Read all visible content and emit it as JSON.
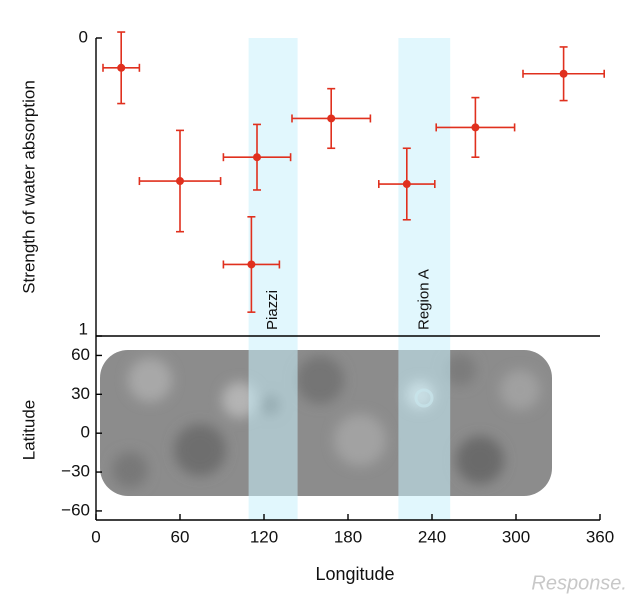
{
  "chart_data": [
    {
      "type": "scatter",
      "ylabel": "Strength of water absorption",
      "xlim": [
        0,
        360
      ],
      "ylim": [
        0,
        1
      ],
      "y_inverted": true,
      "yticks": [
        0,
        1
      ],
      "bands": [
        {
          "label": "Piazzi",
          "range": [
            109,
            144
          ]
        },
        {
          "label": "Region A",
          "range": [
            216,
            253
          ]
        }
      ],
      "band_color": "#c9f0fb",
      "series": [
        {
          "color": "#e0301e",
          "x": [
            18,
            60,
            111,
            115,
            168,
            222,
            271,
            334
          ],
          "values": [
            0.1,
            0.48,
            0.76,
            0.4,
            0.27,
            0.49,
            0.3,
            0.12
          ],
          "xerr": [
            13,
            29,
            20,
            24,
            28,
            20,
            28,
            29
          ],
          "yerr": [
            0.12,
            0.17,
            0.16,
            0.11,
            0.1,
            0.12,
            0.1,
            0.09
          ]
        }
      ]
    },
    {
      "type": "map",
      "ylabel": "Latitude",
      "xlabel": "Longitude",
      "xlim": [
        0,
        360
      ],
      "ylim": [
        -67,
        75
      ],
      "xticks": [
        0,
        60,
        120,
        180,
        240,
        300,
        360
      ],
      "yticks": [
        60,
        30,
        0,
        {
          "value": -30,
          "label": "−30"
        },
        {
          "value": -60,
          "label": "−60"
        }
      ]
    }
  ],
  "watermark": "Response."
}
